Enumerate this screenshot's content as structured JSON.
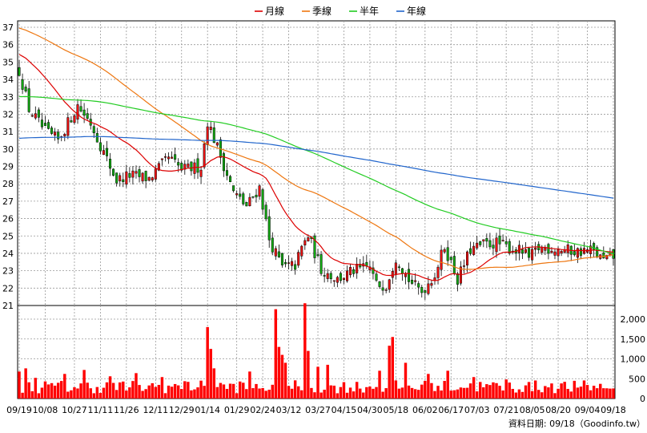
{
  "chart_data": {
    "type": "candlestick",
    "legend": [
      {
        "name": "月線",
        "color": "#dd0000"
      },
      {
        "name": "季線",
        "color": "#ee7711"
      },
      {
        "name": "半年",
        "color": "#22cc22"
      },
      {
        "name": "年線",
        "color": "#2266cc"
      }
    ],
    "price_axis": {
      "min": 21,
      "max": 37,
      "ticks": [
        21,
        22,
        23,
        24,
        25,
        26,
        27,
        28,
        29,
        30,
        31,
        32,
        33,
        34,
        35,
        36,
        37
      ]
    },
    "volume_axis": {
      "min": 0,
      "max": 2000,
      "ticks": [
        0,
        500,
        1000,
        1500,
        2000
      ],
      "tick_labels": [
        "0",
        "500",
        "1,000",
        "1,500",
        "2,000"
      ]
    },
    "x_labels": [
      "09/19",
      "10/08",
      "10/27",
      "11/11",
      "11/26",
      "12/11",
      "12/29",
      "01/14",
      "01/29",
      "02/24",
      "03/12",
      "03/27",
      "04/15",
      "04/30",
      "05/18",
      "06/02",
      "06/17",
      "07/03",
      "07/21",
      "08/05",
      "08/20",
      "09/04",
      "09/18"
    ],
    "price_key_points": [
      [
        0,
        34.5
      ],
      [
        3,
        32.3
      ],
      [
        8,
        31.0
      ],
      [
        12,
        30.5
      ],
      [
        18,
        32.5
      ],
      [
        22,
        31.5
      ],
      [
        26,
        29.8
      ],
      [
        30,
        28.2
      ],
      [
        34,
        28.5
      ],
      [
        40,
        28.3
      ],
      [
        46,
        29.5
      ],
      [
        50,
        28.8
      ],
      [
        56,
        29.0
      ],
      [
        58,
        31.6
      ],
      [
        62,
        29.6
      ],
      [
        66,
        27.5
      ],
      [
        70,
        26.7
      ],
      [
        74,
        27.8
      ],
      [
        77,
        24.8
      ],
      [
        81,
        23.2
      ],
      [
        85,
        23.3
      ],
      [
        87,
        24.3
      ],
      [
        89,
        25.0
      ],
      [
        93,
        23.1
      ],
      [
        98,
        22.5
      ],
      [
        103,
        23.0
      ],
      [
        108,
        23.2
      ],
      [
        110,
        22.2
      ],
      [
        113,
        22.2
      ],
      [
        116,
        23.8
      ],
      [
        120,
        22.5
      ],
      [
        122,
        22.1
      ],
      [
        124,
        21.8
      ],
      [
        128,
        22.8
      ],
      [
        131,
        24.4
      ],
      [
        135,
        22.5
      ],
      [
        139,
        24.2
      ],
      [
        143,
        24.5
      ],
      [
        147,
        24.6
      ],
      [
        151,
        24.3
      ],
      [
        155,
        24.1
      ],
      [
        157,
        23.7
      ],
      [
        160,
        24.3
      ],
      [
        164,
        24.3
      ],
      [
        168,
        24.2
      ],
      [
        172,
        24.1
      ],
      [
        176,
        24.2
      ],
      [
        180,
        23.6
      ],
      [
        183,
        23.8
      ]
    ],
    "volume_spikes": [
      [
        0,
        680
      ],
      [
        2,
        760
      ],
      [
        5,
        520
      ],
      [
        14,
        620
      ],
      [
        20,
        720
      ],
      [
        28,
        560
      ],
      [
        36,
        640
      ],
      [
        44,
        540
      ],
      [
        52,
        420
      ],
      [
        58,
        1800
      ],
      [
        59,
        1250
      ],
      [
        60,
        760
      ],
      [
        71,
        680
      ],
      [
        79,
        2250
      ],
      [
        80,
        1300
      ],
      [
        81,
        1100
      ],
      [
        82,
        900
      ],
      [
        88,
        2400
      ],
      [
        89,
        1200
      ],
      [
        92,
        800
      ],
      [
        95,
        850
      ],
      [
        111,
        700
      ],
      [
        114,
        1330
      ],
      [
        115,
        1550
      ],
      [
        119,
        900
      ],
      [
        126,
        620
      ],
      [
        132,
        700
      ],
      [
        140,
        540
      ],
      [
        150,
        480
      ],
      [
        164,
        380
      ],
      [
        173,
        300
      ],
      [
        178,
        260
      ],
      [
        182,
        250
      ]
    ],
    "source_label": "資料日期: 09/18（Goodinfo.tw）"
  }
}
